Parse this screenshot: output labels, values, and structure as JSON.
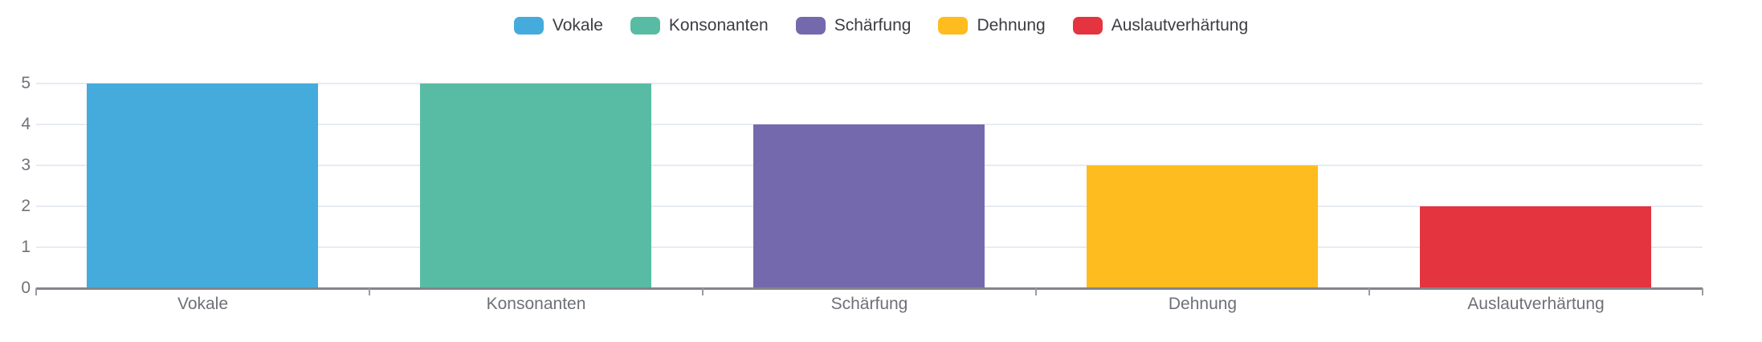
{
  "chart_data": {
    "type": "bar",
    "title": "",
    "xlabel": "",
    "ylabel": "",
    "categories": [
      "Vokale",
      "Konsonanten",
      "Schärfung",
      "Dehnung",
      "Auslautverhärtung"
    ],
    "values": [
      5,
      5,
      4,
      3,
      2
    ],
    "colors": [
      "#45abdc",
      "#58bca4",
      "#7469ad",
      "#febc1e",
      "#e4343f"
    ],
    "legend": [
      "Vokale",
      "Konsonanten",
      "Schärfung",
      "Dehnung",
      "Auslautverhärtung"
    ],
    "legend_position": "top-center",
    "ylim": [
      0,
      5
    ],
    "yticks": [
      0,
      1,
      2,
      3,
      4,
      5
    ],
    "grid": true
  },
  "styles": {
    "background": "#ffffff",
    "grid_color": "#e7ebf3",
    "axis_color": "#84848a",
    "tick_mark_color": "#9b9ba1",
    "y_label_color": "#71717a",
    "x_label_color": "#6e7077",
    "legend_text_color": "#3c3c43"
  }
}
